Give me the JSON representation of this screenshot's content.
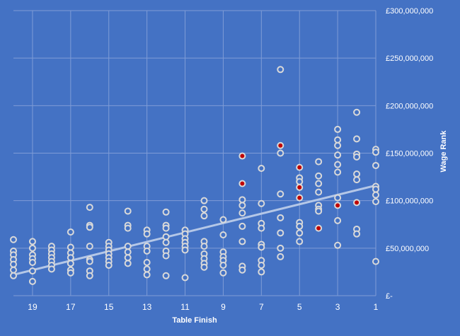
{
  "chart_data": {
    "type": "scatter",
    "xlabel": "Table Finish",
    "ylabel": "Wage Rank",
    "x_reversed": true,
    "xlim": [
      1,
      20
    ],
    "ylim": [
      0,
      300000000
    ],
    "x_ticks": [
      19,
      17,
      15,
      13,
      11,
      9,
      7,
      5,
      3,
      1
    ],
    "y_ticks": [
      0,
      50000000,
      100000000,
      150000000,
      200000000,
      250000000,
      300000000
    ],
    "y_tick_labels": [
      "£-",
      "£50,000,000",
      "£100,000,000",
      "£150,000,000",
      "£200,000,000",
      "£250,000,000",
      "£300,000,000"
    ],
    "grid": true,
    "legend": "none",
    "trendline": {
      "type": "linear",
      "x": [
        20,
        1
      ],
      "y": [
        22000000,
        116000000
      ]
    },
    "colors": {
      "background": "#4472C4",
      "grid": "#7F9CD6",
      "marker_edge": "#D9D9D9",
      "marker_fill": "#4472C4",
      "highlight_fill": "#C00000",
      "trendline": "#B4C7E7",
      "text": "#FFFFFF"
    },
    "series": [
      {
        "points": [
          [
            20,
            59000000
          ],
          [
            20,
            47000000
          ],
          [
            20,
            43000000
          ],
          [
            20,
            38000000
          ],
          [
            20,
            33000000
          ],
          [
            20,
            27000000
          ],
          [
            20,
            21000000
          ],
          [
            19,
            57000000
          ],
          [
            19,
            50000000
          ],
          [
            19,
            43000000
          ],
          [
            19,
            39000000
          ],
          [
            19,
            35000000
          ],
          [
            19,
            26000000
          ],
          [
            19,
            15000000
          ],
          [
            18,
            52000000
          ],
          [
            18,
            48000000
          ],
          [
            18,
            44000000
          ],
          [
            18,
            40000000
          ],
          [
            18,
            36000000
          ],
          [
            18,
            32000000
          ],
          [
            18,
            28000000
          ],
          [
            17,
            67000000
          ],
          [
            17,
            51000000
          ],
          [
            17,
            45000000
          ],
          [
            17,
            40000000
          ],
          [
            17,
            34000000
          ],
          [
            17,
            27000000
          ],
          [
            17,
            24000000
          ],
          [
            16,
            93000000
          ],
          [
            16,
            74000000
          ],
          [
            16,
            72000000
          ],
          [
            16,
            52000000
          ],
          [
            16,
            38000000
          ],
          [
            16,
            36000000
          ],
          [
            16,
            26000000
          ],
          [
            16,
            21000000
          ],
          [
            15,
            56000000
          ],
          [
            15,
            52000000
          ],
          [
            15,
            48000000
          ],
          [
            15,
            44000000
          ],
          [
            15,
            40000000
          ],
          [
            15,
            36000000
          ],
          [
            15,
            32000000
          ],
          [
            14,
            89000000
          ],
          [
            14,
            74000000
          ],
          [
            14,
            71000000
          ],
          [
            14,
            52000000
          ],
          [
            14,
            46000000
          ],
          [
            14,
            40000000
          ],
          [
            14,
            34000000
          ],
          [
            13,
            69000000
          ],
          [
            13,
            65000000
          ],
          [
            13,
            52000000
          ],
          [
            13,
            47000000
          ],
          [
            13,
            35000000
          ],
          [
            13,
            28000000
          ],
          [
            13,
            22000000
          ],
          [
            12,
            88000000
          ],
          [
            12,
            74000000
          ],
          [
            12,
            71000000
          ],
          [
            12,
            62000000
          ],
          [
            12,
            56000000
          ],
          [
            12,
            47000000
          ],
          [
            12,
            42000000
          ],
          [
            12,
            21000000
          ],
          [
            11,
            69000000
          ],
          [
            11,
            65000000
          ],
          [
            11,
            60000000
          ],
          [
            11,
            56000000
          ],
          [
            11,
            52000000
          ],
          [
            11,
            48000000
          ],
          [
            11,
            19000000
          ],
          [
            10,
            100000000
          ],
          [
            10,
            91000000
          ],
          [
            10,
            84000000
          ],
          [
            10,
            57000000
          ],
          [
            10,
            52000000
          ],
          [
            10,
            44000000
          ],
          [
            10,
            39000000
          ],
          [
            10,
            34000000
          ],
          [
            10,
            30000000
          ],
          [
            9,
            80000000
          ],
          [
            9,
            64000000
          ],
          [
            9,
            46000000
          ],
          [
            9,
            41000000
          ],
          [
            9,
            37000000
          ],
          [
            9,
            32000000
          ],
          [
            9,
            24000000
          ],
          [
            8,
            101000000
          ],
          [
            8,
            95000000
          ],
          [
            8,
            87000000
          ],
          [
            8,
            73000000
          ],
          [
            8,
            57000000
          ],
          [
            8,
            31000000
          ],
          [
            8,
            27000000
          ],
          [
            7,
            134000000
          ],
          [
            7,
            97000000
          ],
          [
            7,
            76000000
          ],
          [
            7,
            71000000
          ],
          [
            7,
            54000000
          ],
          [
            7,
            51000000
          ],
          [
            7,
            37000000
          ],
          [
            7,
            32000000
          ],
          [
            7,
            25000000
          ],
          [
            6,
            238000000
          ],
          [
            6,
            150000000
          ],
          [
            6,
            107000000
          ],
          [
            6,
            82000000
          ],
          [
            6,
            66000000
          ],
          [
            6,
            50000000
          ],
          [
            6,
            41000000
          ],
          [
            5,
            124000000
          ],
          [
            5,
            120000000
          ],
          [
            5,
            77000000
          ],
          [
            5,
            73000000
          ],
          [
            5,
            66000000
          ],
          [
            5,
            57000000
          ],
          [
            4,
            141000000
          ],
          [
            4,
            126000000
          ],
          [
            4,
            118000000
          ],
          [
            4,
            109000000
          ],
          [
            4,
            95000000
          ],
          [
            4,
            91000000
          ],
          [
            4,
            89000000
          ],
          [
            3,
            175000000
          ],
          [
            3,
            164000000
          ],
          [
            3,
            158000000
          ],
          [
            3,
            148000000
          ],
          [
            3,
            138000000
          ],
          [
            3,
            130000000
          ],
          [
            3,
            103000000
          ],
          [
            3,
            79000000
          ],
          [
            3,
            53000000
          ],
          [
            2,
            193000000
          ],
          [
            2,
            165000000
          ],
          [
            2,
            149000000
          ],
          [
            2,
            146000000
          ],
          [
            2,
            128000000
          ],
          [
            2,
            122000000
          ],
          [
            2,
            70000000
          ],
          [
            2,
            65000000
          ],
          [
            1,
            154000000
          ],
          [
            1,
            151000000
          ],
          [
            1,
            137000000
          ],
          [
            1,
            115000000
          ],
          [
            1,
            112000000
          ],
          [
            1,
            106000000
          ],
          [
            1,
            99000000
          ],
          [
            1,
            36000000
          ]
        ]
      },
      {
        "highlight": true,
        "points": [
          [
            8,
            147000000
          ],
          [
            8,
            118000000
          ],
          [
            6,
            158000000
          ],
          [
            5,
            135000000
          ],
          [
            5,
            114000000
          ],
          [
            5,
            103000000
          ],
          [
            4,
            71000000
          ],
          [
            3,
            95000000
          ],
          [
            2,
            98000000
          ]
        ]
      }
    ]
  }
}
